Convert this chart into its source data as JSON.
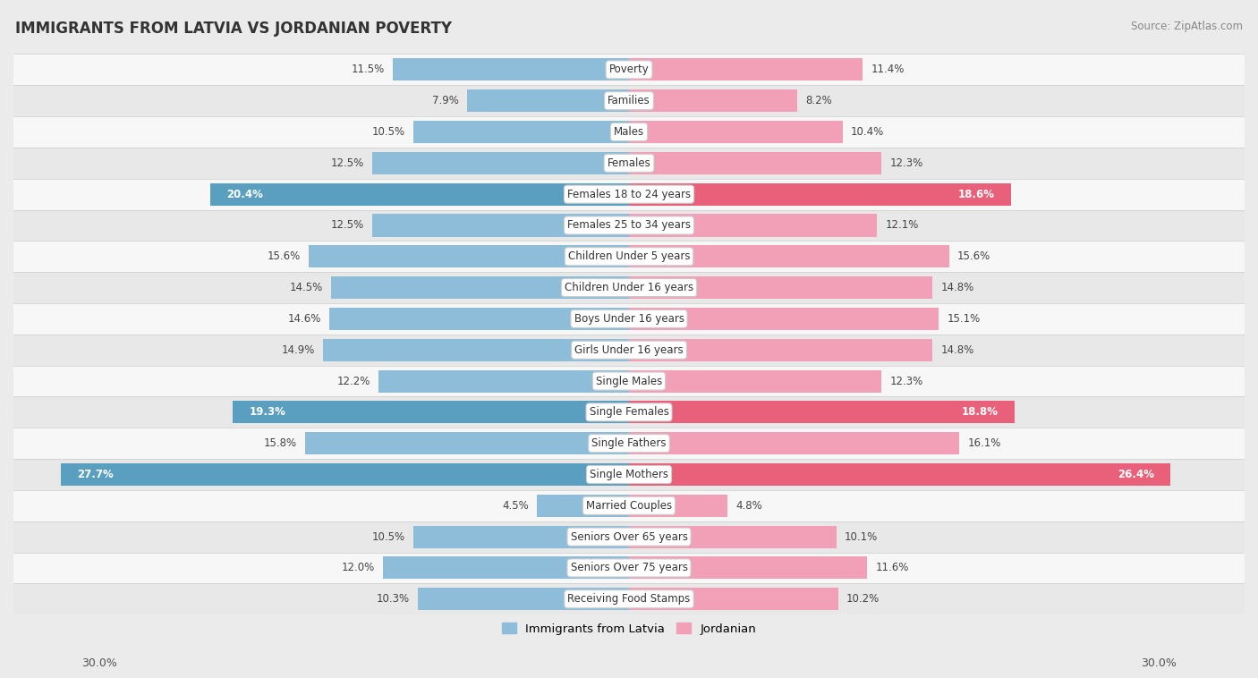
{
  "title": "IMMIGRANTS FROM LATVIA VS JORDANIAN POVERTY",
  "source": "Source: ZipAtlas.com",
  "categories": [
    "Poverty",
    "Families",
    "Males",
    "Females",
    "Females 18 to 24 years",
    "Females 25 to 34 years",
    "Children Under 5 years",
    "Children Under 16 years",
    "Boys Under 16 years",
    "Girls Under 16 years",
    "Single Males",
    "Single Females",
    "Single Fathers",
    "Single Mothers",
    "Married Couples",
    "Seniors Over 65 years",
    "Seniors Over 75 years",
    "Receiving Food Stamps"
  ],
  "latvia_values": [
    11.5,
    7.9,
    10.5,
    12.5,
    20.4,
    12.5,
    15.6,
    14.5,
    14.6,
    14.9,
    12.2,
    19.3,
    15.8,
    27.7,
    4.5,
    10.5,
    12.0,
    10.3
  ],
  "jordan_values": [
    11.4,
    8.2,
    10.4,
    12.3,
    18.6,
    12.1,
    15.6,
    14.8,
    15.1,
    14.8,
    12.3,
    18.8,
    16.1,
    26.4,
    4.8,
    10.1,
    11.6,
    10.2
  ],
  "latvia_color": "#8dbdd8",
  "jordan_color": "#f2a0b8",
  "latvia_highlight_color": "#5a9fc0",
  "jordan_highlight_color": "#e8607a",
  "highlight_rows": [
    4,
    11,
    13
  ],
  "max_value": 30.0,
  "bg_color": "#ebebeb",
  "row_bg_even": "#f7f7f7",
  "row_bg_odd": "#e8e8e8",
  "legend_latvia": "Immigrants from Latvia",
  "legend_jordan": "Jordanian",
  "axis_label_left": "30.0%",
  "axis_label_right": "30.0%"
}
